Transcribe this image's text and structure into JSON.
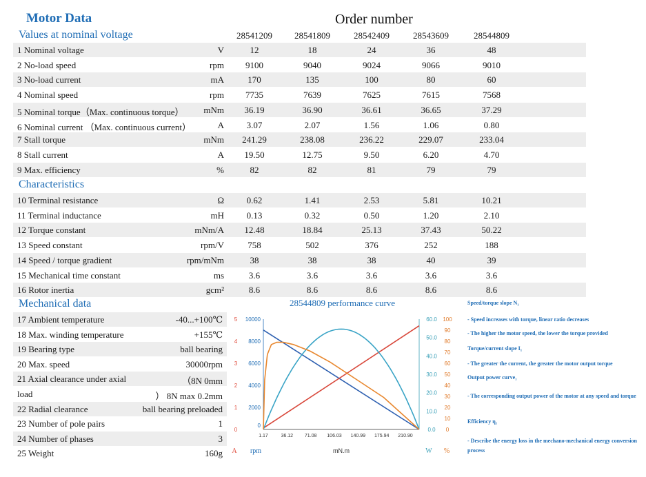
{
  "header": {
    "title": "Motor Data",
    "order_label": "Order number",
    "section_nominal": "Values at nominal voltage",
    "section_char": "Characteristics",
    "section_mech": "Mechanical data"
  },
  "order_numbers": [
    "28541209",
    "28541809",
    "28542409",
    "28543609",
    "28544809"
  ],
  "nominal_rows": [
    {
      "label": "1 Nominal voltage",
      "unit": "V",
      "values": [
        "12",
        "18",
        "24",
        "36",
        "48"
      ]
    },
    {
      "label": "2 No-load speed",
      "unit": "rpm",
      "values": [
        "9100",
        "9040",
        "9024",
        "9066",
        "9010"
      ]
    },
    {
      "label": "3 No-load current",
      "unit": "mA",
      "values": [
        "170",
        "135",
        "100",
        "80",
        "60"
      ]
    },
    {
      "label": "4 Nominal speed",
      "unit": "rpm",
      "values": [
        "7735",
        "7639",
        "7625",
        "7615",
        "7568"
      ]
    },
    {
      "label": "5 Nominal torque（Max. continuous torque）",
      "unit": "mNm",
      "values": [
        "36.19",
        "36.90",
        "36.61",
        "36.65",
        "37.29"
      ]
    },
    {
      "label": "6 Nominal current （Max. continuous current）",
      "unit": "A",
      "values": [
        "3.07",
        "2.07",
        "1.56",
        "1.06",
        "0.80"
      ]
    },
    {
      "label": "7 Stall torque",
      "unit": "mNm",
      "values": [
        "241.29",
        "238.08",
        "236.22",
        "229.07",
        "233.04"
      ]
    },
    {
      "label": "8 Stall current",
      "unit": "A",
      "values": [
        "19.50",
        "12.75",
        "9.50",
        "6.20",
        "4.70"
      ]
    },
    {
      "label": "9 Max. efficiency",
      "unit": "%",
      "values": [
        "82",
        "82",
        "81",
        "79",
        "79"
      ]
    }
  ],
  "char_rows": [
    {
      "label": "10 Terminal resistance",
      "unit": "Ω",
      "values": [
        "0.62",
        "1.41",
        "2.53",
        "5.81",
        "10.21"
      ]
    },
    {
      "label": "11 Terminal inductance",
      "unit": "mH",
      "values": [
        "0.13",
        "0.32",
        "0.50",
        "1.20",
        "2.10"
      ]
    },
    {
      "label": "12 Torque constant",
      "unit": "mNm/A",
      "values": [
        "12.48",
        "18.84",
        "25.13",
        "37.43",
        "50.22"
      ]
    },
    {
      "label": "13 Speed constant",
      "unit": "rpm/V",
      "values": [
        "758",
        "502",
        "376",
        "252",
        "188"
      ]
    },
    {
      "label": "14 Speed / torque gradient",
      "unit": "rpm/mNm",
      "values": [
        "38",
        "38",
        "38",
        "40",
        "39"
      ]
    },
    {
      "label": "15 Mechanical time constant",
      "unit": "ms",
      "values": [
        "3.6",
        "3.6",
        "3.6",
        "3.6",
        "3.6"
      ]
    },
    {
      "label": "16 Rotor inertia",
      "unit": "gcm²",
      "values": [
        "8.6",
        "8.6",
        "8.6",
        "8.6",
        "8.6"
      ]
    }
  ],
  "mech_rows": [
    {
      "label": "17 Ambient temperature",
      "value": "-40...+100℃"
    },
    {
      "label": "18 Max. winding temperature",
      "value": "+155℃"
    },
    {
      "label": "19 Bearing type",
      "value": "ball bearing"
    },
    {
      "label": "20 Max. speed",
      "value": "30000rpm"
    },
    {
      "label": "21 Axial clearance under axial",
      "value": "（8N        0mm"
    },
    {
      "label": "load",
      "value": "） 8N  max 0.2mm"
    },
    {
      "label": "22 Radial clearance",
      "value": "ball bearing  preloaded"
    },
    {
      "label": "23 Number of pole pairs",
      "value": "1"
    },
    {
      "label": "24 Number of phases",
      "value": "3"
    },
    {
      "label": "25 Weight",
      "value": "160g"
    }
  ],
  "chart_data": {
    "type": "line",
    "title": "28544809 performance curve",
    "xlabel": "mN.m",
    "x_ticks": [
      "1.17",
      "36.12",
      "71.08",
      "106.03",
      "140.99",
      "175.94",
      "210.90"
    ],
    "xlim": [
      0,
      233.04
    ],
    "left_axes": [
      {
        "unit": "A",
        "ticks": [
          "0",
          "1",
          "2",
          "3",
          "4",
          "5"
        ],
        "color": "#e04a3a"
      },
      {
        "unit": "rpm",
        "ticks": [
          "0",
          "2000",
          "4000",
          "6000",
          "8000",
          "10000"
        ],
        "color": "#1f6db5"
      }
    ],
    "right_axes": [
      {
        "unit": "W",
        "ticks": [
          "0.0",
          "10.0",
          "20.0",
          "30.0",
          "40.0",
          "50.0",
          "60.0"
        ],
        "color": "#3aa0b8"
      },
      {
        "unit": "%",
        "ticks": [
          "0",
          "10",
          "20",
          "30",
          "40",
          "50",
          "60",
          "70",
          "80",
          "90",
          "100"
        ],
        "color": "#e07a2a"
      }
    ],
    "series": [
      {
        "name": "Speed",
        "color": "#2d5fb0",
        "x": [
          0,
          233.04
        ],
        "y": [
          9010,
          0
        ],
        "axis": "rpm"
      },
      {
        "name": "Current",
        "color": "#d8473a",
        "x": [
          0,
          233.04
        ],
        "y": [
          0.06,
          4.7
        ],
        "axis": "A"
      },
      {
        "name": "Output power",
        "color": "#3aa4c6",
        "x": [
          0,
          29.1,
          58.3,
          87.4,
          116.5,
          145.6,
          174.8,
          203.9,
          233.04
        ],
        "y": [
          0,
          23.9,
          41.0,
          51.2,
          54.6,
          51.2,
          41.0,
          23.9,
          0
        ],
        "axis": "W"
      },
      {
        "name": "Efficiency",
        "color": "#e8872e",
        "x": [
          0,
          2,
          6,
          12,
          20,
          30,
          45,
          70,
          100,
          140,
          180,
          233.04
        ],
        "y": [
          0,
          45,
          68,
          77,
          79,
          79,
          77,
          71,
          61,
          45,
          29,
          0
        ],
        "axis": "%"
      }
    ]
  },
  "notes": [
    {
      "kind": "hd",
      "text": "Speed/torque slope N₁"
    },
    {
      "kind": "tx",
      "text": "- Speed increases with torque, linear ratio decreases"
    },
    {
      "kind": "tx",
      "text": "- The higher the motor speed, the lower the torque provided"
    },
    {
      "kind": "hd",
      "text": "Torque/current slope I₁"
    },
    {
      "kind": "tx",
      "text": "- The greater the current, the greater the motor output torque"
    },
    {
      "kind": "hd",
      "text": "Output power curve₁"
    },
    {
      "kind": "tx",
      "text": "- The corresponding output power of the motor at any speed and torque"
    },
    {
      "kind": "hd",
      "text": "Efficiency η₁"
    },
    {
      "kind": "tx",
      "text": "- Describe the energy loss in the mechano-mechanical energy conversion process"
    }
  ]
}
